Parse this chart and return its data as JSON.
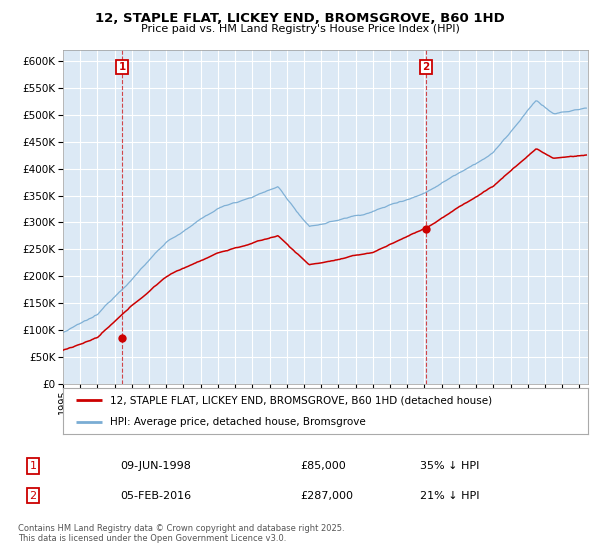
{
  "title": "12, STAPLE FLAT, LICKEY END, BROMSGROVE, B60 1HD",
  "subtitle": "Price paid vs. HM Land Registry's House Price Index (HPI)",
  "legend_property": "12, STAPLE FLAT, LICKEY END, BROMSGROVE, B60 1HD (detached house)",
  "legend_hpi": "HPI: Average price, detached house, Bromsgrove",
  "transaction1_date": "09-JUN-1998",
  "transaction1_price": "£85,000",
  "transaction1_hpi": "35% ↓ HPI",
  "transaction2_date": "05-FEB-2016",
  "transaction2_price": "£287,000",
  "transaction2_hpi": "21% ↓ HPI",
  "property_color": "#cc0000",
  "hpi_color": "#7aadd4",
  "plot_bg_color": "#dce9f5",
  "background_color": "#ffffff",
  "grid_color": "#ffffff",
  "vline_color": "#cc0000",
  "ylim": [
    0,
    620000
  ],
  "ytick_step": 50000,
  "xlim_start": 1995,
  "xlim_end": 2025.5,
  "t1": 1998.4384,
  "t2": 2016.0877,
  "p1": 85000,
  "p2": 287000,
  "footnote": "Contains HM Land Registry data © Crown copyright and database right 2025.\nThis data is licensed under the Open Government Licence v3.0."
}
